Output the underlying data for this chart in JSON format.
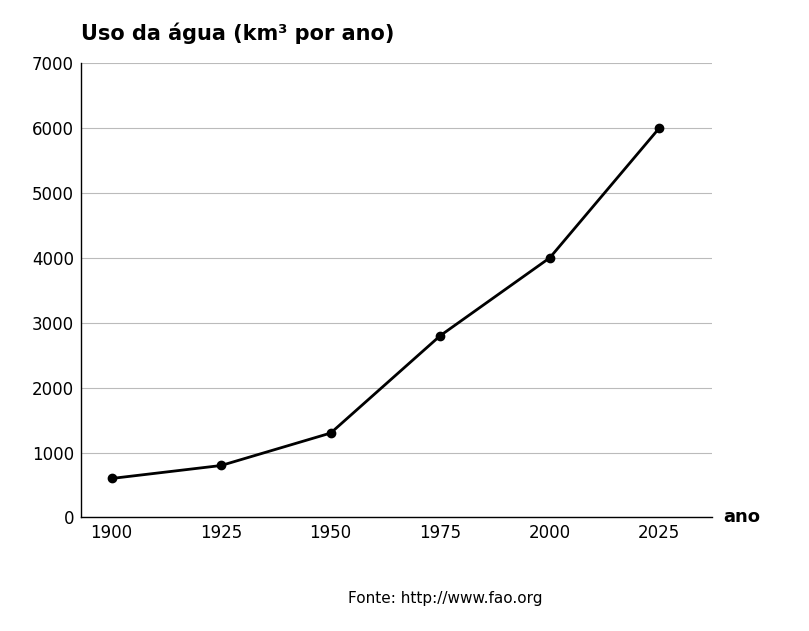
{
  "x": [
    1900,
    1925,
    1950,
    1975,
    2000,
    2025
  ],
  "y": [
    600,
    800,
    1300,
    2800,
    4000,
    6000
  ],
  "title": "Uso da água (km³ por ano)",
  "xlabel": "ano",
  "xlim": [
    1893,
    2037
  ],
  "ylim": [
    0,
    7000
  ],
  "yticks": [
    0,
    1000,
    2000,
    3000,
    4000,
    5000,
    6000,
    7000
  ],
  "xticks": [
    1900,
    1925,
    1950,
    1975,
    2000,
    2025
  ],
  "line_color": "#000000",
  "marker": "o",
  "marker_size": 6,
  "line_width": 2.0,
  "background_color": "#ffffff",
  "grid_color": "#bbbbbb",
  "fonte_text": "Fonte: http://www.fao.org",
  "title_fontsize": 15,
  "tick_fontsize": 12,
  "ano_fontsize": 13,
  "fonte_fontsize": 11
}
